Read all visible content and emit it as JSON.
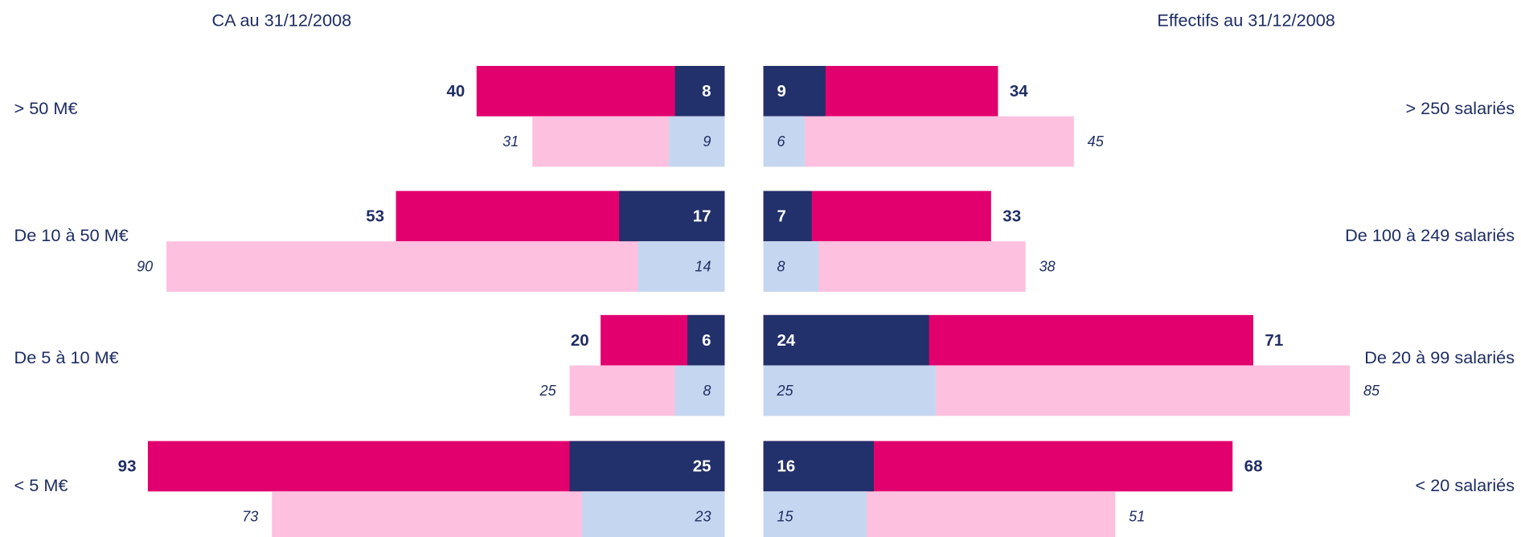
{
  "chart_data": [
    {
      "type": "bar",
      "orientation": "horizontal",
      "direction": "left",
      "title": "CA au 31/12/2008",
      "categories": [
        "> 50 M€",
        "De 10 à 50 M€",
        "De 5 à 10 M€",
        "< 5 M€"
      ],
      "series": [
        {
          "color": "#e2006e",
          "values": [
            40,
            53,
            20,
            93
          ]
        },
        {
          "color": "#22306b",
          "values": [
            8,
            17,
            6,
            25
          ]
        },
        {
          "color": "#fdc0df",
          "values": [
            31,
            90,
            25,
            73
          ]
        },
        {
          "color": "#c5d7f0",
          "values": [
            9,
            14,
            8,
            23
          ]
        }
      ]
    },
    {
      "type": "bar",
      "orientation": "horizontal",
      "direction": "right",
      "title": "Effectifs au 31/12/2008",
      "categories": [
        "> 250 salariés",
        "De 100 à 249 salariés",
        "De 20 à 99 salariés",
        "< 20 salariés"
      ],
      "series": [
        {
          "color": "#e2006e",
          "values": [
            34,
            33,
            71,
            68
          ]
        },
        {
          "color": "#22306b",
          "values": [
            9,
            7,
            24,
            16
          ]
        },
        {
          "color": "#fdc0df",
          "values": [
            45,
            38,
            85,
            51
          ]
        },
        {
          "color": "#c5d7f0",
          "values": [
            6,
            8,
            25,
            15
          ]
        }
      ]
    }
  ]
}
